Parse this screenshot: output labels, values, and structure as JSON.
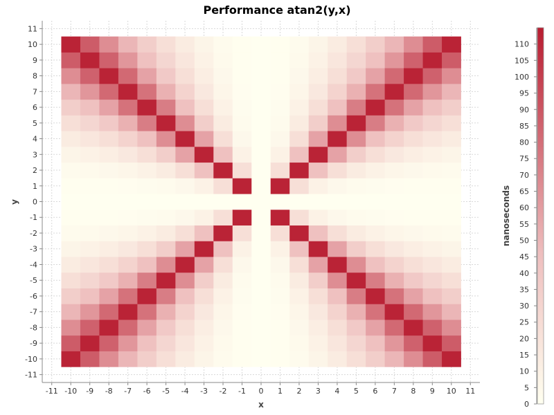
{
  "chart_data": {
    "type": "heatmap",
    "title": "Performance atan2(y,x)",
    "xlabel": "x",
    "ylabel": "y",
    "x_ticks": [
      -11,
      -10,
      -9,
      -8,
      -7,
      -6,
      -5,
      -4,
      -3,
      -2,
      -1,
      0,
      1,
      2,
      3,
      4,
      5,
      6,
      7,
      8,
      9,
      10,
      11
    ],
    "y_ticks": [
      -11,
      -10,
      -9,
      -8,
      -7,
      -6,
      -5,
      -4,
      -3,
      -2,
      -1,
      0,
      1,
      2,
      3,
      4,
      5,
      6,
      7,
      8,
      9,
      10,
      11
    ],
    "xlim": [
      -11.5,
      11.5
    ],
    "ylim": [
      -11.5,
      11.5
    ],
    "cells_x_range": [
      -10,
      10
    ],
    "cells_y_range": [
      -10,
      10
    ],
    "colorbar": {
      "label": "nanoseconds",
      "min": 0,
      "max": 115,
      "ticks": [
        0,
        5,
        10,
        15,
        20,
        25,
        30,
        35,
        40,
        45,
        50,
        55,
        60,
        65,
        70,
        75,
        80,
        85,
        90,
        95,
        100,
        105,
        110
      ],
      "low_color": "#fffff0",
      "high_color": "#b81c30"
    },
    "value_model": "value(x,y) = 112 * exp(-2.3 * ln(max(|x|,|y|)/min(|x|,|y|))); 0 when x=0 or y=0",
    "grid": true,
    "legend_position": "right"
  }
}
